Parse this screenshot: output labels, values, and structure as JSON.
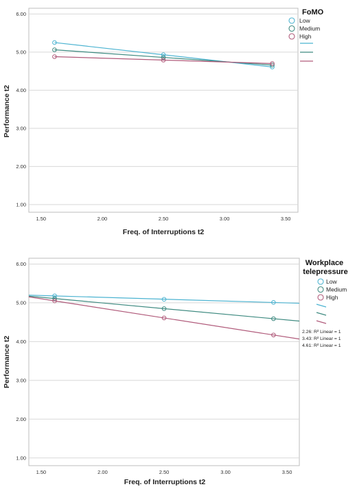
{
  "colors": {
    "low": "#4bb3d1",
    "medium": "#3e8a80",
    "high": "#b05a7a",
    "grid": "#d8d8d8",
    "frame": "#bdbdbd"
  },
  "chart_data": [
    {
      "type": "line",
      "xlabel": "Freq. of Interruptions t2",
      "ylabel": "Performance t2",
      "xlim": [
        1.4,
        3.6
      ],
      "ylim": [
        0.8,
        6.15
      ],
      "xticks": [
        "1.50",
        "2.00",
        "2.50",
        "3.00",
        "3.50"
      ],
      "yticks": [
        "1.00",
        "2.00",
        "3.00",
        "4.00",
        "5.00",
        "6.00"
      ],
      "grid": "horizontal",
      "legend": {
        "title": "FoMO",
        "placement": "right",
        "entries": [
          "Low",
          "Medium",
          "High"
        ]
      },
      "notes": [],
      "series": [
        {
          "name": "Low",
          "color_key": "low",
          "x": [
            1.61,
            2.5,
            3.39
          ],
          "y": [
            5.25,
            4.93,
            4.61
          ],
          "fit_x": [
            1.61,
            3.39
          ]
        },
        {
          "name": "Medium",
          "color_key": "medium",
          "x": [
            1.61,
            2.5,
            3.39
          ],
          "y": [
            5.06,
            4.86,
            4.66
          ],
          "fit_x": [
            1.61,
            3.39
          ]
        },
        {
          "name": "High",
          "color_key": "high",
          "x": [
            1.61,
            2.5,
            3.39
          ],
          "y": [
            4.88,
            4.79,
            4.7
          ],
          "fit_x": [
            1.61,
            3.39
          ]
        }
      ]
    },
    {
      "type": "line",
      "xlabel": "Freq. of Interruptions t2",
      "ylabel": "Performance t2",
      "xlim": [
        1.4,
        3.6
      ],
      "ylim": [
        0.8,
        6.15
      ],
      "xticks": [
        "1.50",
        "2.00",
        "2.50",
        "3.00",
        "3.50"
      ],
      "yticks": [
        "1.00",
        "2.00",
        "3.00",
        "4.00",
        "5.00",
        "6.00"
      ],
      "grid": "horizontal",
      "legend": {
        "title": "Workplace telepressure",
        "title_lines": [
          "Workplace",
          "telepressure"
        ],
        "placement": "right",
        "entries": [
          "Low",
          "Medium",
          "High"
        ]
      },
      "notes": [
        "2.26: R² Linear = 1",
        "3.43: R² Linear = 1",
        "4.61: R² Linear = 1"
      ],
      "series": [
        {
          "name": "Low",
          "color_key": "low",
          "x": [
            1.61,
            2.5,
            3.39
          ],
          "y": [
            5.18,
            5.09,
            5.01
          ],
          "fit_x": [
            1.4,
            3.6
          ]
        },
        {
          "name": "Medium",
          "color_key": "medium",
          "x": [
            1.61,
            2.5,
            3.39
          ],
          "y": [
            5.11,
            4.85,
            4.59
          ],
          "fit_x": [
            1.4,
            3.6
          ]
        },
        {
          "name": "High",
          "color_key": "high",
          "x": [
            1.61,
            2.5,
            3.39
          ],
          "y": [
            5.05,
            4.61,
            4.17
          ],
          "fit_x": [
            1.4,
            3.6
          ]
        }
      ]
    }
  ]
}
